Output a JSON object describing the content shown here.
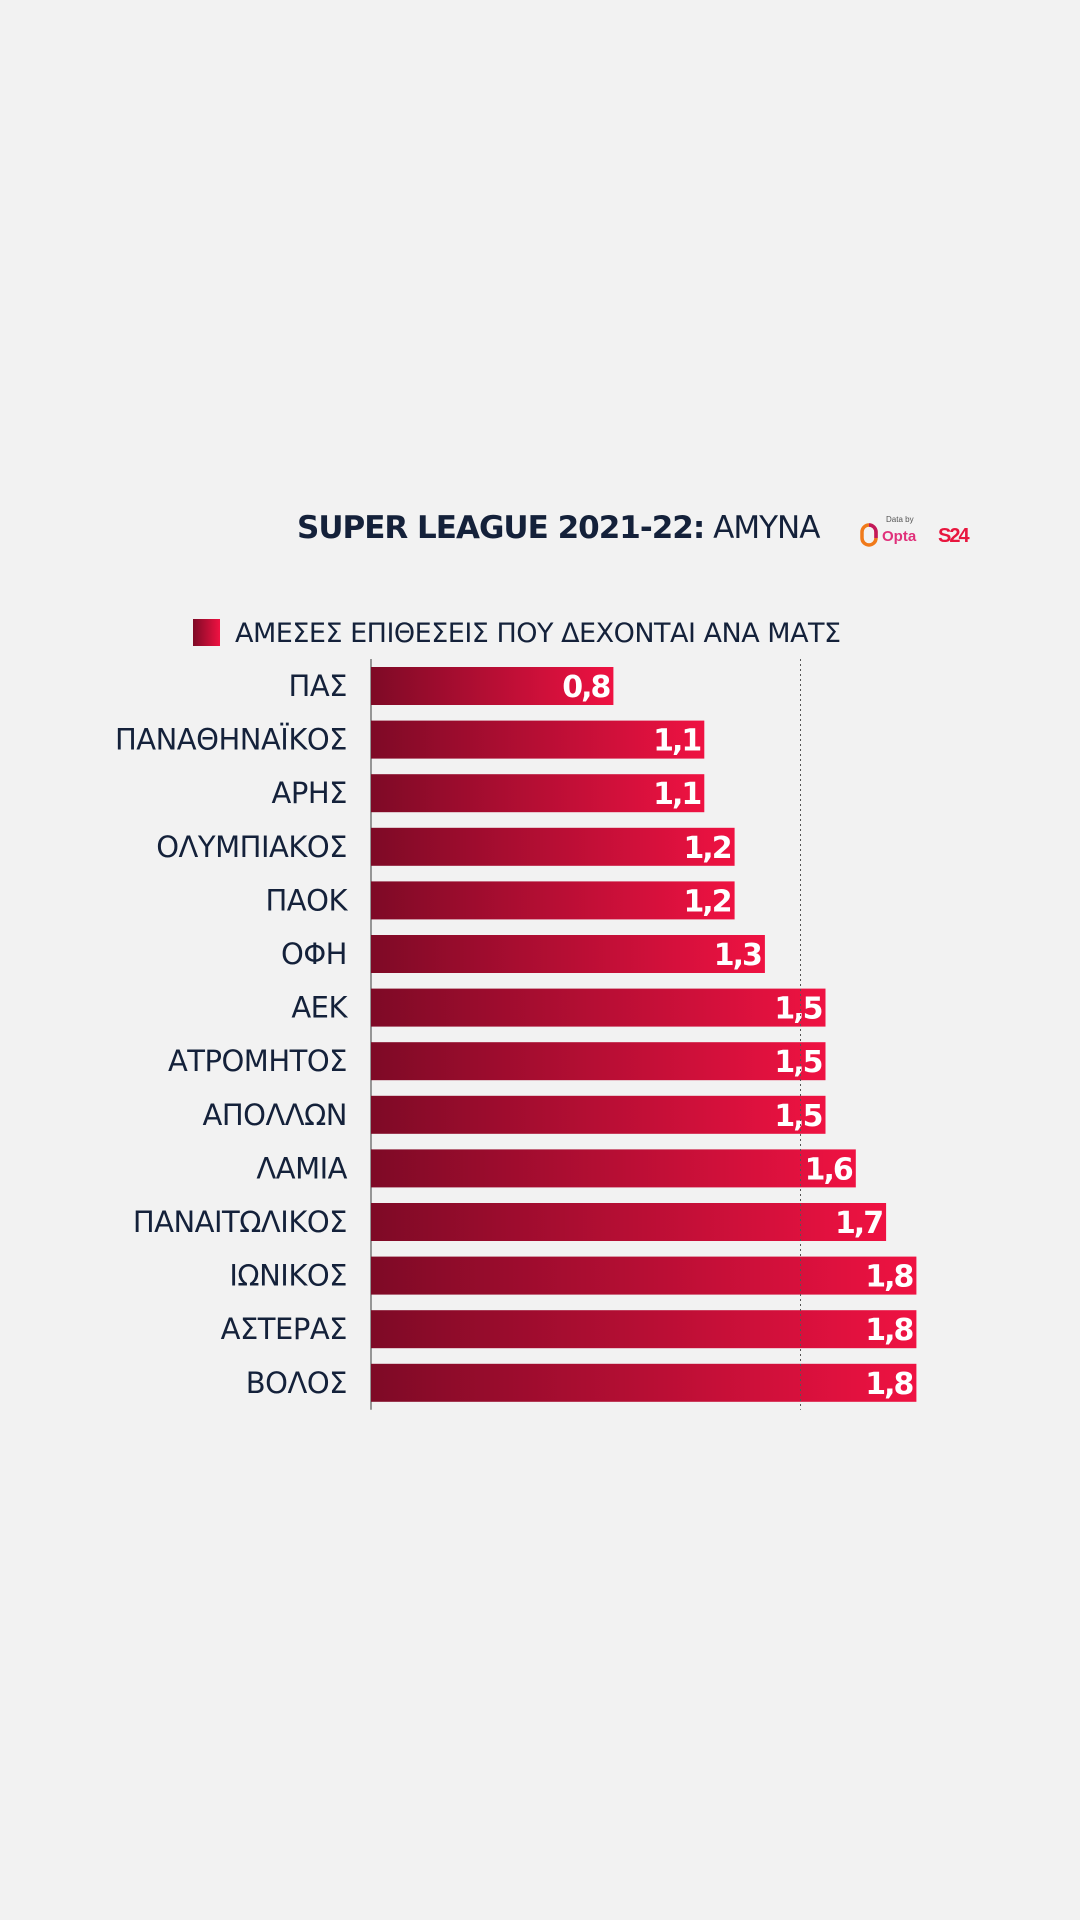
{
  "title": {
    "bold": "SUPER LEAGUE 2021-22:",
    "light": "ΑΜΥΝΑ"
  },
  "logos": {
    "data_by": "Data by",
    "opta": "Opta",
    "s24": "S24"
  },
  "legend": {
    "label": "ΑΜΕΣΕΣ ΕΠΙΘΕΣΕΙΣ ΠΟΥ ΔΕΧΟΝΤΑΙ ΑΝΑ ΜΑΤΣ"
  },
  "colors": {
    "bar_dark": "#7e0a26",
    "bar_light": "#ef1242",
    "text": "#14213a",
    "background": "#f2f2f2"
  },
  "chart_data": {
    "type": "bar",
    "orientation": "horizontal",
    "categories": [
      "ΠΑΣ",
      "ΠΑΝΑΘΗΝΑΪΚΟΣ",
      "ΑΡΗΣ",
      "ΟΛΥΜΠΙΑΚΟΣ",
      "ΠΑΟΚ",
      "ΟΦΗ",
      "ΑΕΚ",
      "ΑΤΡΟΜΗΤΟΣ",
      "ΑΠΟΛΛΩΝ",
      "ΛΑΜΙΑ",
      "ΠΑΝΑΙΤΩΛΙΚΟΣ",
      "ΙΩΝΙΚΟΣ",
      "ΑΣΤΕΡΑΣ",
      "ΒΟΛΟΣ"
    ],
    "values": [
      0.8,
      1.1,
      1.1,
      1.2,
      1.2,
      1.3,
      1.5,
      1.5,
      1.5,
      1.6,
      1.7,
      1.8,
      1.8,
      1.8
    ],
    "value_labels": [
      "0,8",
      "1,1",
      "1,1",
      "1,2",
      "1,2",
      "1,3",
      "1,5",
      "1,5",
      "1,5",
      "1,6",
      "1,7",
      "1,8",
      "1,8",
      "1,8"
    ],
    "series": [
      {
        "name": "ΑΜΕΣΕΣ ΕΠΙΘΕΣΕΙΣ ΠΟΥ ΔΕΧΟΝΤΑΙ ΑΝΑ ΜΑΤΣ",
        "values": [
          0.8,
          1.1,
          1.1,
          1.2,
          1.2,
          1.3,
          1.5,
          1.5,
          1.5,
          1.6,
          1.7,
          1.8,
          1.8,
          1.8
        ]
      }
    ],
    "xlim": [
      0,
      2
    ],
    "reference_line": 1.5,
    "grid": false
  }
}
